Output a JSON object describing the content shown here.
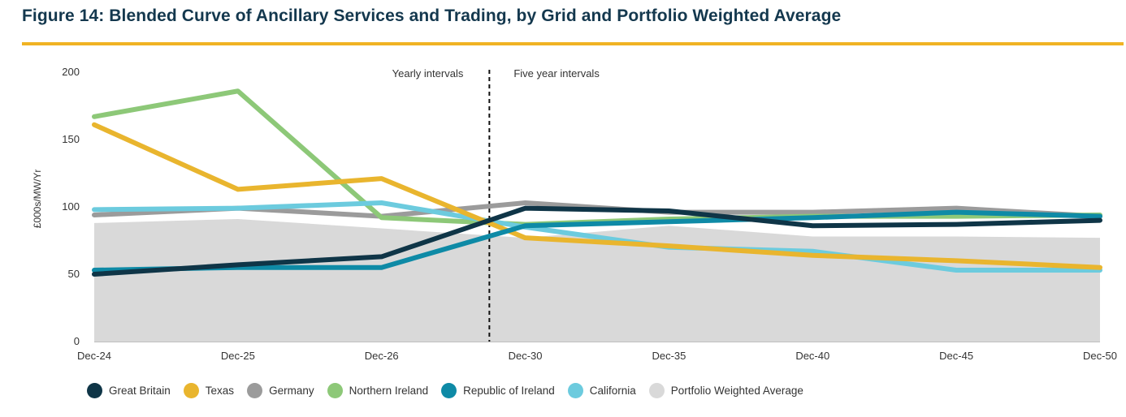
{
  "figure": {
    "title": "Figure 14: Blended Curve of Ancillary Services and Trading, by Grid and Portfolio Weighted Average"
  },
  "colors": {
    "title": "#14384e",
    "rule": "#f0b323"
  },
  "chart_data": {
    "type": "line",
    "title": "Figure 14: Blended Curve of Ancillary Services and Trading, by Grid and Portfolio Weighted Average",
    "xlabel": "",
    "ylabel": "£000s/MW/Yr",
    "categories": [
      "Dec-24",
      "Dec-25",
      "Dec-26",
      "Dec-30",
      "Dec-35",
      "Dec-40",
      "Dec-45",
      "Dec-50"
    ],
    "ylim": [
      0,
      200
    ],
    "yticks": [
      0,
      50,
      100,
      150,
      200
    ],
    "divider": {
      "after_index": 2.75,
      "left_label": "Yearly intervals",
      "right_label": "Five year intervals"
    },
    "series": [
      {
        "name": "Portfolio Weighted Average",
        "type": "area",
        "color": "#d9d9d9",
        "values": [
          88,
          91,
          84,
          77,
          86,
          78,
          78,
          77
        ]
      },
      {
        "name": "Germany",
        "color": "#9b9b9b",
        "values": [
          94,
          99,
          93,
          103,
          96,
          96,
          99,
          93
        ]
      },
      {
        "name": "Northern Ireland",
        "color": "#8dc878",
        "values": [
          167,
          186,
          92,
          87,
          91,
          93,
          93,
          94
        ]
      },
      {
        "name": "California",
        "color": "#6ccbde",
        "values": [
          98,
          99,
          103,
          85,
          70,
          67,
          53,
          53
        ]
      },
      {
        "name": "Texas",
        "color": "#e9b52e",
        "values": [
          161,
          113,
          121,
          77,
          71,
          64,
          60,
          55
        ]
      },
      {
        "name": "Republic of Ireland",
        "color": "#0e8aa6",
        "values": [
          53,
          55,
          55,
          86,
          89,
          92,
          96,
          93
        ]
      },
      {
        "name": "Great Britain",
        "color": "#0f3547",
        "values": [
          50,
          57,
          63,
          99,
          97,
          86,
          87,
          90
        ]
      }
    ],
    "legend": [
      {
        "name": "Great Britain",
        "color": "#0f3547"
      },
      {
        "name": "Texas",
        "color": "#e9b52e"
      },
      {
        "name": "Germany",
        "color": "#9b9b9b"
      },
      {
        "name": "Northern Ireland",
        "color": "#8dc878"
      },
      {
        "name": "Republic of Ireland",
        "color": "#0e8aa6"
      },
      {
        "name": "California",
        "color": "#6ccbde"
      },
      {
        "name": "Portfolio Weighted Average",
        "color": "#d9d9d9"
      }
    ]
  }
}
